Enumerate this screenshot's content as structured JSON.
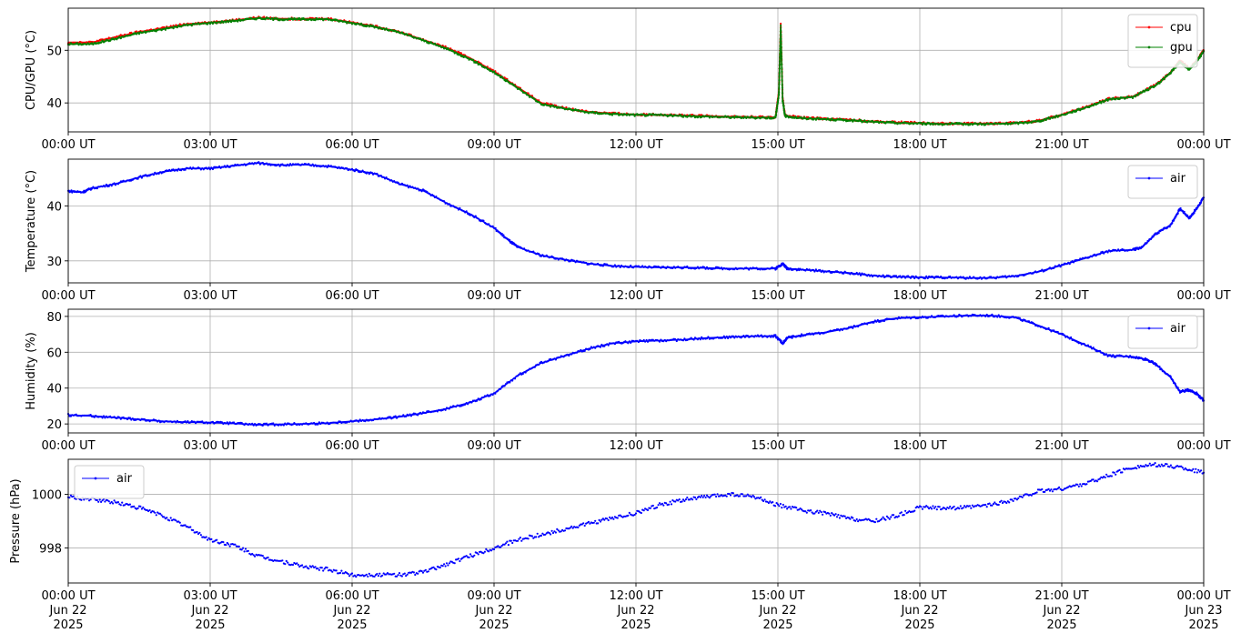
{
  "chart_data": [
    {
      "type": "line",
      "ylabel": "CPU/GPU (°C)",
      "ylim": [
        34.5,
        58
      ],
      "yticks": [
        40,
        50
      ],
      "x_ticks": [
        "00:00 UT",
        "03:00 UT",
        "06:00 UT",
        "09:00 UT",
        "12:00 UT",
        "15:00 UT",
        "18:00 UT",
        "21:00 UT",
        "00:00 UT"
      ],
      "xlim_hours": [
        0,
        24
      ],
      "legend": "top-right",
      "grid": true,
      "series": [
        {
          "name": "cpu",
          "color": "#ff0000",
          "x": [
            0,
            0.5,
            1,
            1.5,
            2,
            2.5,
            3,
            3.5,
            4,
            4.5,
            5,
            5.5,
            6,
            6.5,
            7,
            7.5,
            8,
            8.5,
            9,
            9.5,
            10,
            10.5,
            11,
            11.5,
            12,
            12.5,
            13,
            13.5,
            14,
            14.5,
            14.95,
            15.02,
            15.06,
            15.1,
            15.15,
            15.5,
            16,
            16.5,
            17,
            17.5,
            18,
            18.5,
            19,
            19.5,
            20,
            20.5,
            21,
            21.5,
            22,
            22.5,
            23,
            23.3,
            23.5,
            23.7,
            23.85,
            24
          ],
          "y": [
            51.5,
            51.5,
            52.5,
            53.5,
            54.2,
            55,
            55.3,
            55.7,
            56.2,
            56,
            56,
            56,
            55.3,
            54.5,
            53.5,
            52,
            50.5,
            48.5,
            46,
            43,
            40,
            39,
            38.3,
            38,
            37.8,
            37.8,
            37.6,
            37.5,
            37.4,
            37.3,
            37.3,
            42,
            55,
            41,
            37.6,
            37.2,
            37,
            36.8,
            36.5,
            36.3,
            36.2,
            36.1,
            36.1,
            36.1,
            36.2,
            36.6,
            37.8,
            39.2,
            40.8,
            41.2,
            43.5,
            45.8,
            48,
            46.5,
            48,
            50
          ]
        },
        {
          "name": "gpu",
          "color": "#008000",
          "x": [
            0,
            0.5,
            1,
            1.5,
            2,
            2.5,
            3,
            3.5,
            4,
            4.5,
            5,
            5.5,
            6,
            6.5,
            7,
            7.5,
            8,
            8.5,
            9,
            9.5,
            10,
            10.5,
            11,
            11.5,
            12,
            12.5,
            13,
            13.5,
            14,
            14.5,
            14.95,
            15.02,
            15.06,
            15.1,
            15.15,
            15.5,
            16,
            16.5,
            17,
            17.5,
            18,
            18.5,
            19,
            19.5,
            20,
            20.5,
            21,
            21.5,
            22,
            22.5,
            23,
            23.3,
            23.5,
            23.7,
            23.85,
            24
          ],
          "y": [
            51.2,
            51.2,
            52.2,
            53.3,
            54,
            54.8,
            55.2,
            55.6,
            56.1,
            55.9,
            55.9,
            55.9,
            55.2,
            54.4,
            53.4,
            51.9,
            50.3,
            48.3,
            45.8,
            42.8,
            39.8,
            38.9,
            38.2,
            37.9,
            37.7,
            37.7,
            37.5,
            37.4,
            37.3,
            37.2,
            37.2,
            41.5,
            54.5,
            40.5,
            37.5,
            37.1,
            36.9,
            36.7,
            36.4,
            36.2,
            36.1,
            36,
            36,
            36,
            36.1,
            36.5,
            37.7,
            39.1,
            40.7,
            41.1,
            43.4,
            45.7,
            47.8,
            46.3,
            47.9,
            49.8
          ]
        }
      ]
    },
    {
      "type": "line",
      "ylabel": "Temperature (°C)",
      "ylim": [
        26,
        48.5
      ],
      "yticks": [
        30,
        40
      ],
      "x_ticks": [
        "00:00 UT",
        "03:00 UT",
        "06:00 UT",
        "09:00 UT",
        "12:00 UT",
        "15:00 UT",
        "18:00 UT",
        "21:00 UT",
        "00:00 UT"
      ],
      "xlim_hours": [
        0,
        24
      ],
      "legend": "top-right",
      "grid": true,
      "series": [
        {
          "name": "air",
          "color": "#0000ff",
          "x": [
            0,
            0.3,
            0.5,
            1,
            1.5,
            2,
            2.5,
            3,
            3.5,
            4,
            4.5,
            5,
            5.5,
            6,
            6.5,
            7,
            7.5,
            8,
            8.5,
            9,
            9.3,
            9.5,
            10,
            10.5,
            11,
            11.5,
            12,
            12.5,
            13,
            13.5,
            14,
            14.5,
            14.95,
            15.1,
            15.2,
            15.5,
            16,
            16.5,
            17,
            17.5,
            18,
            18.5,
            19,
            19.5,
            20,
            20.5,
            21,
            21.5,
            22,
            22.5,
            22.7,
            23,
            23.3,
            23.5,
            23.7,
            23.85,
            24
          ],
          "y": [
            42.7,
            42.5,
            43.2,
            44,
            45.2,
            46.2,
            46.8,
            46.8,
            47.3,
            47.8,
            47.4,
            47.5,
            47.2,
            46.6,
            45.8,
            44,
            42.8,
            40.5,
            38.5,
            36,
            33.8,
            32.5,
            31,
            30.2,
            29.5,
            29.1,
            28.9,
            28.8,
            28.8,
            28.7,
            28.6,
            28.6,
            28.6,
            29.5,
            28.6,
            28.4,
            28.1,
            27.8,
            27.3,
            27.1,
            27,
            27,
            26.9,
            26.9,
            27.2,
            28,
            29.2,
            30.5,
            31.8,
            32,
            32.5,
            35,
            36.5,
            39.5,
            37.8,
            39.5,
            41.5
          ]
        }
      ]
    },
    {
      "type": "line",
      "ylabel": "Humidity (%)",
      "ylim": [
        15,
        84
      ],
      "yticks": [
        20,
        40,
        60,
        80
      ],
      "x_ticks": [
        "00:00 UT",
        "03:00 UT",
        "06:00 UT",
        "09:00 UT",
        "12:00 UT",
        "15:00 UT",
        "18:00 UT",
        "21:00 UT",
        "00:00 UT"
      ],
      "xlim_hours": [
        0,
        24
      ],
      "legend": "top-right",
      "grid": true,
      "series": [
        {
          "name": "air",
          "color": "#0000ff",
          "x": [
            0,
            0.5,
            1,
            1.5,
            2,
            2.5,
            3,
            3.5,
            4,
            4.5,
            5,
            5.5,
            6,
            6.5,
            7,
            7.5,
            8,
            8.5,
            9,
            9.5,
            10,
            10.5,
            11,
            11.5,
            12,
            12.5,
            13,
            13.5,
            14,
            14.5,
            14.95,
            15.1,
            15.2,
            15.5,
            16,
            16.5,
            17,
            17.5,
            18,
            18.5,
            19,
            19.5,
            20,
            20.5,
            21,
            21.5,
            22,
            22.5,
            22.8,
            23,
            23.3,
            23.5,
            23.7,
            23.85,
            24
          ],
          "y": [
            25,
            24.5,
            23.5,
            22.5,
            21.5,
            21,
            20.8,
            20.3,
            19.5,
            19.8,
            20,
            20.5,
            21.5,
            22.5,
            24,
            26,
            28.5,
            32,
            37,
            47,
            54,
            58,
            62,
            65,
            66,
            66.5,
            67,
            68,
            68.5,
            69,
            69,
            65,
            68,
            69.5,
            71,
            73.5,
            77,
            79,
            79.5,
            80,
            80.5,
            80.5,
            79.5,
            75,
            70,
            64,
            58,
            57.5,
            56,
            53,
            46,
            38,
            39,
            37,
            33
          ]
        }
      ]
    },
    {
      "type": "scatter",
      "ylabel": "Pressure (hPa)",
      "ylim": [
        996.7,
        1001.3
      ],
      "yticks": [
        998,
        1000
      ],
      "x_ticks": [
        "00:00 UT\nJun 22\n2025",
        "03:00 UT\nJun 22\n2025",
        "06:00 UT\nJun 22\n2025",
        "09:00 UT\nJun 22\n2025",
        "12:00 UT\nJun 22\n2025",
        "15:00 UT\nJun 22\n2025",
        "18:00 UT\nJun 22\n2025",
        "21:00 UT\nJun 22\n2025",
        "00:00 UT\nJun 23\n2025"
      ],
      "xlim_hours": [
        0,
        24
      ],
      "legend": "top-left",
      "grid": true,
      "series": [
        {
          "name": "air",
          "color": "#0000ff",
          "x": [
            0,
            0.5,
            1,
            1.5,
            2,
            2.5,
            3,
            3.5,
            4,
            4.5,
            5,
            5.5,
            6,
            6.5,
            7,
            7.5,
            8,
            8.5,
            9,
            9.5,
            10,
            10.5,
            11,
            11.5,
            12,
            12.5,
            13,
            13.5,
            14,
            14.5,
            15,
            15.5,
            16,
            16.5,
            17,
            17.5,
            18,
            18.5,
            19,
            19.5,
            20,
            20.5,
            21,
            21.5,
            22,
            22.5,
            23,
            23.5,
            24
          ],
          "y": [
            999.9,
            999.8,
            999.7,
            999.5,
            999.2,
            998.8,
            998.3,
            998.1,
            997.7,
            997.5,
            997.3,
            997.2,
            997.0,
            997.0,
            997.0,
            997.1,
            997.4,
            997.7,
            998.0,
            998.3,
            998.5,
            998.7,
            998.9,
            999.1,
            999.3,
            999.6,
            999.8,
            999.9,
            1000.0,
            999.9,
            999.6,
            999.4,
            999.3,
            999.1,
            999.0,
            999.2,
            999.5,
            999.5,
            999.5,
            999.6,
            999.8,
            1000.1,
            1000.2,
            1000.4,
            1000.7,
            1001.0,
            1001.1,
            1001.0,
            1000.8
          ]
        }
      ]
    }
  ]
}
